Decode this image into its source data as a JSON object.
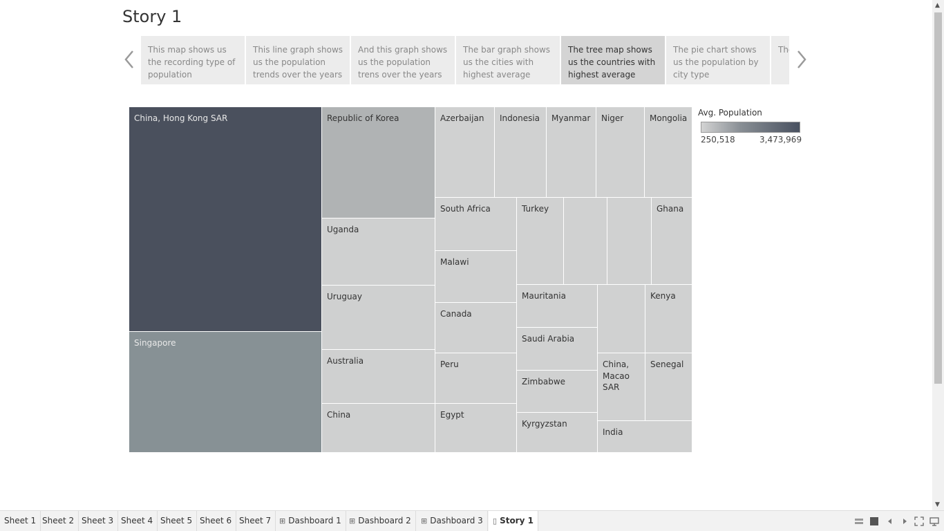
{
  "story": {
    "title": "Story 1",
    "points": [
      {
        "text": "This map shows us the recording type of population"
      },
      {
        "text": "This line graph shows us the population trends over the years"
      },
      {
        "text": "And this graph shows us the population trens over the years"
      },
      {
        "text": "The bar graph shows us the cities with highest average"
      },
      {
        "text": "The tree map shows us the countries with highest average"
      },
      {
        "text": "The pie chart shows us the population by city type"
      },
      {
        "text": "The... us t... citi..."
      }
    ],
    "active_point": 4
  },
  "chart_data": {
    "type": "treemap",
    "measure": "Avg. Population",
    "color_range": [
      "250,518",
      "3,473,969"
    ],
    "colors": {
      "low": "#d3d3d3",
      "high": "#495160"
    },
    "items": [
      {
        "label": "China, Hong Kong SAR",
        "color": "#4a505d"
      },
      {
        "label": "Singapore",
        "color": "#879195"
      },
      {
        "label": "Republic of Korea",
        "color": "#b0b3b4"
      },
      {
        "label": "Uganda",
        "color": "#cfd0d0"
      },
      {
        "label": "Uruguay",
        "color": "#cfd0d0"
      },
      {
        "label": "Australia",
        "color": "#cfd0d0"
      },
      {
        "label": "China",
        "color": "#cfd0d0"
      },
      {
        "label": "Azerbaijan",
        "color": "#d0d1d1"
      },
      {
        "label": "Indonesia",
        "color": "#d0d1d1"
      },
      {
        "label": "Myanmar",
        "color": "#d0d1d1"
      },
      {
        "label": "Niger",
        "color": "#d0d1d1"
      },
      {
        "label": "Mongolia",
        "color": "#d0d1d1"
      },
      {
        "label": "South Africa",
        "color": "#d0d1d1"
      },
      {
        "label": "Malawi",
        "color": "#d0d1d1"
      },
      {
        "label": "Canada",
        "color": "#d0d1d1"
      },
      {
        "label": "Peru",
        "color": "#d0d1d1"
      },
      {
        "label": "Egypt",
        "color": "#d0d1d1"
      },
      {
        "label": "Turkey",
        "color": "#d0d1d1"
      },
      {
        "label": "",
        "color": "#d0d1d1"
      },
      {
        "label": "",
        "color": "#d0d1d1"
      },
      {
        "label": "Ghana",
        "color": "#d0d1d1"
      },
      {
        "label": "Mauritania",
        "color": "#d0d1d1"
      },
      {
        "label": "Saudi Arabia",
        "color": "#d0d1d1"
      },
      {
        "label": "Zimbabwe",
        "color": "#d0d1d1"
      },
      {
        "label": "Kyrgyzstan",
        "color": "#d0d1d1"
      },
      {
        "label": "",
        "color": "#d0d1d1"
      },
      {
        "label": "Kenya",
        "color": "#d0d1d1"
      },
      {
        "label": "China, Macao SAR",
        "color": "#d0d1d1"
      },
      {
        "label": "Senegal",
        "color": "#d0d1d1"
      },
      {
        "label": "India",
        "color": "#d0d1d1"
      }
    ]
  },
  "tabs": [
    {
      "label": "Sheet 1",
      "icon": "none"
    },
    {
      "label": "Sheet 2",
      "icon": "none"
    },
    {
      "label": "Sheet 3",
      "icon": "none"
    },
    {
      "label": "Sheet 4",
      "icon": "none"
    },
    {
      "label": "Sheet 5",
      "icon": "none"
    },
    {
      "label": "Sheet 6",
      "icon": "none"
    },
    {
      "label": "Sheet 7",
      "icon": "none"
    },
    {
      "label": "Dashboard 1",
      "icon": "dashboard-grid-icon"
    },
    {
      "label": "Dashboard 2",
      "icon": "dashboard-grid-icon"
    },
    {
      "label": "Dashboard 3",
      "icon": "dashboard-grid-icon"
    },
    {
      "label": "Story 1",
      "icon": "story-book-icon"
    }
  ],
  "active_tab": "Story 1"
}
